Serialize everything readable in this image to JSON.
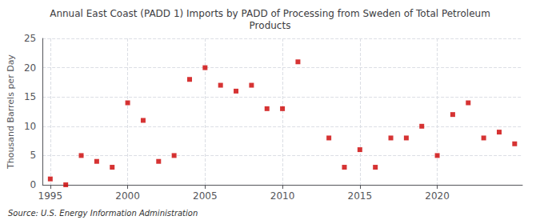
{
  "chart_data": {
    "type": "scatter",
    "title": "Annual East Coast (PADD 1) Imports by PADD of Processing from Sweden of Total Petroleum\nProducts",
    "ylabel": "Thousand Barrels per Day",
    "annotations": [
      "Source: U.S. Energy Information Administration"
    ],
    "x": [
      1995,
      1996,
      1997,
      1998,
      1999,
      2000,
      2001,
      2002,
      2003,
      2004,
      2005,
      2006,
      2007,
      2008,
      2009,
      2010,
      2011,
      2013,
      2014,
      2015,
      2016,
      2017,
      2018,
      2019,
      2020,
      2021,
      2022,
      2023,
      2024,
      2025
    ],
    "values": [
      1,
      0,
      5,
      4,
      3,
      14,
      11,
      4,
      5,
      18,
      20,
      17,
      16,
      17,
      13,
      13,
      21,
      8,
      3,
      6,
      3,
      8,
      8,
      10,
      5,
      12,
      14,
      8,
      9,
      7
    ],
    "color": "#cc0000",
    "marker": "square",
    "xlim": [
      1994.5,
      2025.5
    ],
    "xticks": [
      1995,
      2000,
      2005,
      2010,
      2015,
      2020
    ],
    "ylim": [
      0,
      25
    ],
    "yticks": [
      0,
      5,
      10,
      15,
      20,
      25
    ],
    "grid": true
  }
}
